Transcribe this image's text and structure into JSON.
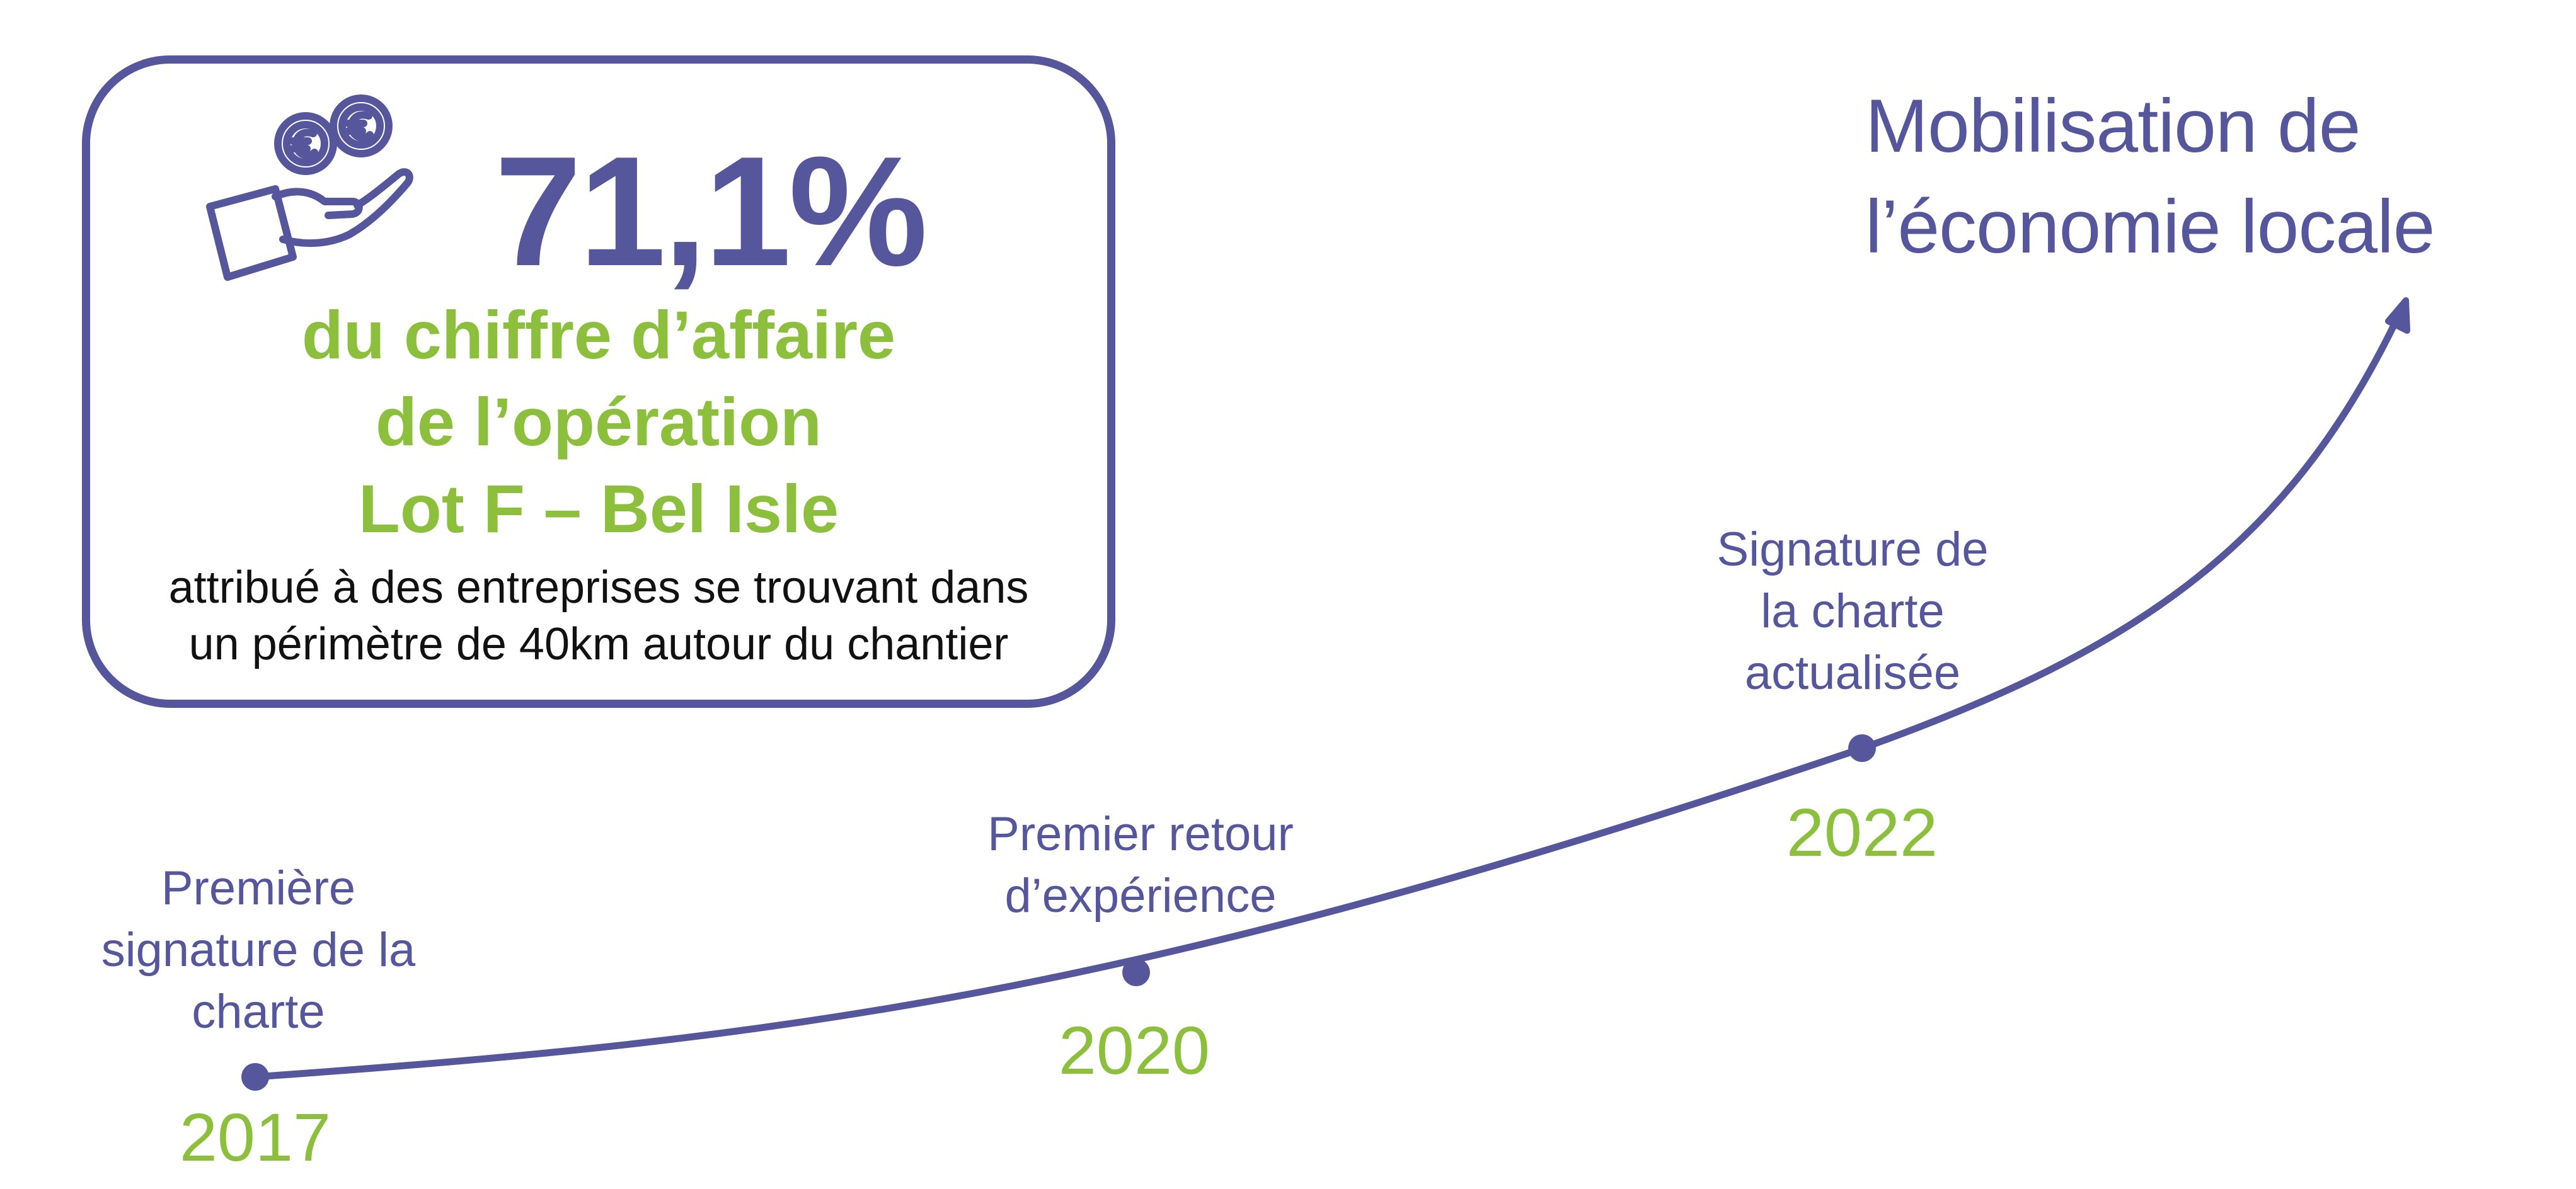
{
  "stat": {
    "value": "71,1%",
    "green_lines": [
      "du chiffre d’affaire",
      "de l’opération",
      "Lot F – Bel Isle"
    ],
    "description_lines": [
      "attribué à des entreprises se trouvant dans",
      "un périmètre de 40km autour du chantier"
    ]
  },
  "icon": "hand-holding-euro-coins-icon",
  "headline": {
    "lines": [
      "Mobilisation de",
      "l’économie locale"
    ]
  },
  "milestones": [
    {
      "year": "2017",
      "label_lines": [
        "Première",
        "signature de la",
        "charte"
      ]
    },
    {
      "year": "2020",
      "label_lines": [
        "Premier retour",
        "d’expérience"
      ]
    },
    {
      "year": "2022",
      "label_lines": [
        "Signature de",
        "la charte",
        "actualisée"
      ]
    }
  ],
  "colors": {
    "primary": "#55569b",
    "accent": "#8bbf3c",
    "text": "#111111"
  }
}
